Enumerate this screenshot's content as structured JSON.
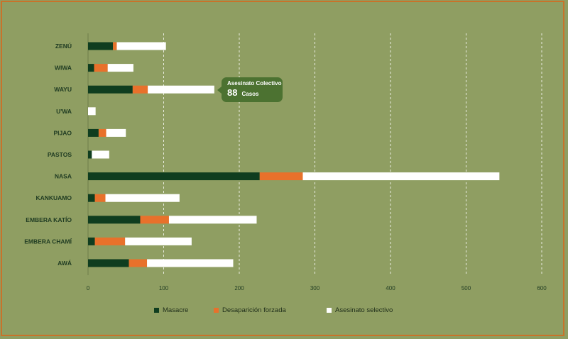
{
  "chart_data": {
    "type": "bar",
    "orientation": "horizontal",
    "stacked": true,
    "categories": [
      "ZENÚ",
      "WIWA",
      "WAYU",
      "U'WA",
      "PIJAO",
      "PASTOS",
      "NASA",
      "KANKUAMO",
      "EMBERA KATÍO",
      "EMBERA CHAMÍ",
      "AWÁ"
    ],
    "series": [
      {
        "name": "Masacre",
        "color": "#0f3d1f",
        "values": [
          33,
          8,
          59,
          0,
          14,
          5,
          227,
          9,
          69,
          9,
          54
        ]
      },
      {
        "name": "Desaparición forzada",
        "color": "#e8712b",
        "values": [
          5,
          18,
          20,
          0,
          10,
          0,
          57,
          14,
          38,
          40,
          24
        ]
      },
      {
        "name": "Asesinato selectivo",
        "color": "#ffffff",
        "values": [
          65,
          34,
          88,
          10,
          26,
          23,
          260,
          98,
          116,
          88,
          114
        ]
      }
    ],
    "xlim": [
      0,
      600
    ],
    "xticks": [
      0,
      100,
      200,
      300,
      400,
      500,
      600
    ],
    "grid": true,
    "legend_position": "bottom",
    "tooltip": {
      "title": "Asesinato Colectivo",
      "value": "88",
      "unit": "Casos"
    }
  }
}
